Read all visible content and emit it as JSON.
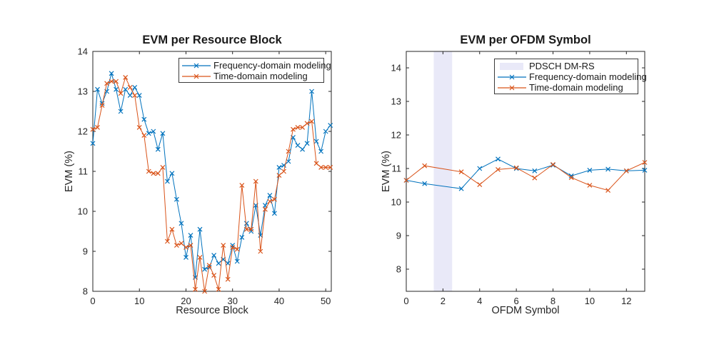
{
  "figure": {
    "background": "#ffffff"
  },
  "colors": {
    "freq_series": "#0072BD",
    "time_series": "#D95319",
    "dmrs_band": "#E9E9F8",
    "axis": "#262626",
    "legend_border": "#3b3b3b"
  },
  "chart_data": [
    {
      "type": "line",
      "title": "EVM per Resource Block",
      "xlabel": "Resource Block",
      "ylabel": "EVM (%)",
      "xlim": [
        0,
        51.2
      ],
      "ylim": [
        8,
        14
      ],
      "xticks": [
        0,
        10,
        20,
        30,
        40,
        50
      ],
      "yticks": [
        8,
        9,
        10,
        11,
        12,
        13,
        14
      ],
      "grid": false,
      "legend_position": "upper right inside",
      "series": [
        {
          "name": "Frequency-domain modeling",
          "color": "#0072BD",
          "marker": "x",
          "x": [
            0,
            1,
            2,
            3,
            4,
            5,
            6,
            7,
            8,
            9,
            10,
            11,
            12,
            13,
            14,
            15,
            16,
            17,
            18,
            19,
            20,
            21,
            22,
            23,
            24,
            25,
            26,
            27,
            28,
            29,
            30,
            31,
            32,
            33,
            34,
            35,
            36,
            37,
            38,
            39,
            40,
            41,
            42,
            43,
            44,
            45,
            46,
            47,
            48,
            49,
            50,
            51
          ],
          "values": [
            11.7,
            13.05,
            12.7,
            13.0,
            13.45,
            13.05,
            12.5,
            13.05,
            12.9,
            13.1,
            12.9,
            12.3,
            11.95,
            12.0,
            11.55,
            11.95,
            10.75,
            10.95,
            10.3,
            9.7,
            8.85,
            9.4,
            8.35,
            9.55,
            8.55,
            8.6,
            8.9,
            8.7,
            8.8,
            8.7,
            9.15,
            8.75,
            9.35,
            9.7,
            9.5,
            10.15,
            9.4,
            10.15,
            10.4,
            9.95,
            11.1,
            11.15,
            11.25,
            11.85,
            11.65,
            11.55,
            11.7,
            13.0,
            11.75,
            11.5,
            12.0,
            12.15
          ]
        },
        {
          "name": "Time-domain modeling",
          "color": "#D95319",
          "marker": "x",
          "x": [
            0,
            1,
            2,
            3,
            4,
            5,
            6,
            7,
            8,
            9,
            10,
            11,
            12,
            13,
            14,
            15,
            16,
            17,
            18,
            19,
            20,
            21,
            22,
            23,
            24,
            25,
            26,
            27,
            28,
            29,
            30,
            31,
            32,
            33,
            34,
            35,
            36,
            37,
            38,
            39,
            40,
            41,
            42,
            43,
            44,
            45,
            46,
            47,
            48,
            49,
            50,
            51
          ],
          "values": [
            12.05,
            12.1,
            12.65,
            13.2,
            13.25,
            13.25,
            12.95,
            13.35,
            13.1,
            12.9,
            12.1,
            11.9,
            11.0,
            10.95,
            10.95,
            11.1,
            9.25,
            9.55,
            9.15,
            9.2,
            9.1,
            9.15,
            8.05,
            8.85,
            8.0,
            8.65,
            8.4,
            8.05,
            9.15,
            8.3,
            9.1,
            9.05,
            10.65,
            9.55,
            9.55,
            10.75,
            9.0,
            10.05,
            10.25,
            10.3,
            10.9,
            11.0,
            11.5,
            12.05,
            12.1,
            12.1,
            12.2,
            12.25,
            11.2,
            11.1,
            11.1,
            11.1
          ]
        }
      ]
    },
    {
      "type": "line",
      "title": "EVM per OFDM Symbol",
      "xlabel": "OFDM Symbol",
      "ylabel": "EVM (%)",
      "xlim": [
        0,
        13
      ],
      "ylim": [
        7.34,
        14.49
      ],
      "xticks": [
        0,
        2,
        4,
        6,
        8,
        10,
        12
      ],
      "yticks": [
        8,
        9,
        10,
        11,
        12,
        13,
        14
      ],
      "grid": false,
      "legend_position": "upper right inside",
      "band": {
        "label": "PDSCH DM-RS",
        "x_start": 1.5,
        "x_end": 2.5,
        "color": "#E9E9F8"
      },
      "series": [
        {
          "name": "Frequency-domain modeling",
          "color": "#0072BD",
          "marker": "x",
          "x": [
            0,
            1,
            3,
            4,
            5,
            6,
            7,
            8,
            9,
            10,
            11,
            12,
            13
          ],
          "values": [
            10.65,
            10.55,
            10.4,
            11.0,
            11.28,
            11.0,
            10.93,
            11.1,
            10.78,
            10.95,
            10.98,
            10.93,
            10.95
          ]
        },
        {
          "name": "Time-domain modeling",
          "color": "#D95319",
          "marker": "x",
          "x": [
            0,
            1,
            3,
            4,
            5,
            6,
            7,
            8,
            9,
            10,
            11,
            12,
            13
          ],
          "values": [
            10.65,
            11.08,
            10.9,
            10.52,
            10.97,
            11.02,
            10.72,
            11.12,
            10.73,
            10.5,
            10.35,
            10.93,
            11.18
          ]
        }
      ]
    }
  ]
}
